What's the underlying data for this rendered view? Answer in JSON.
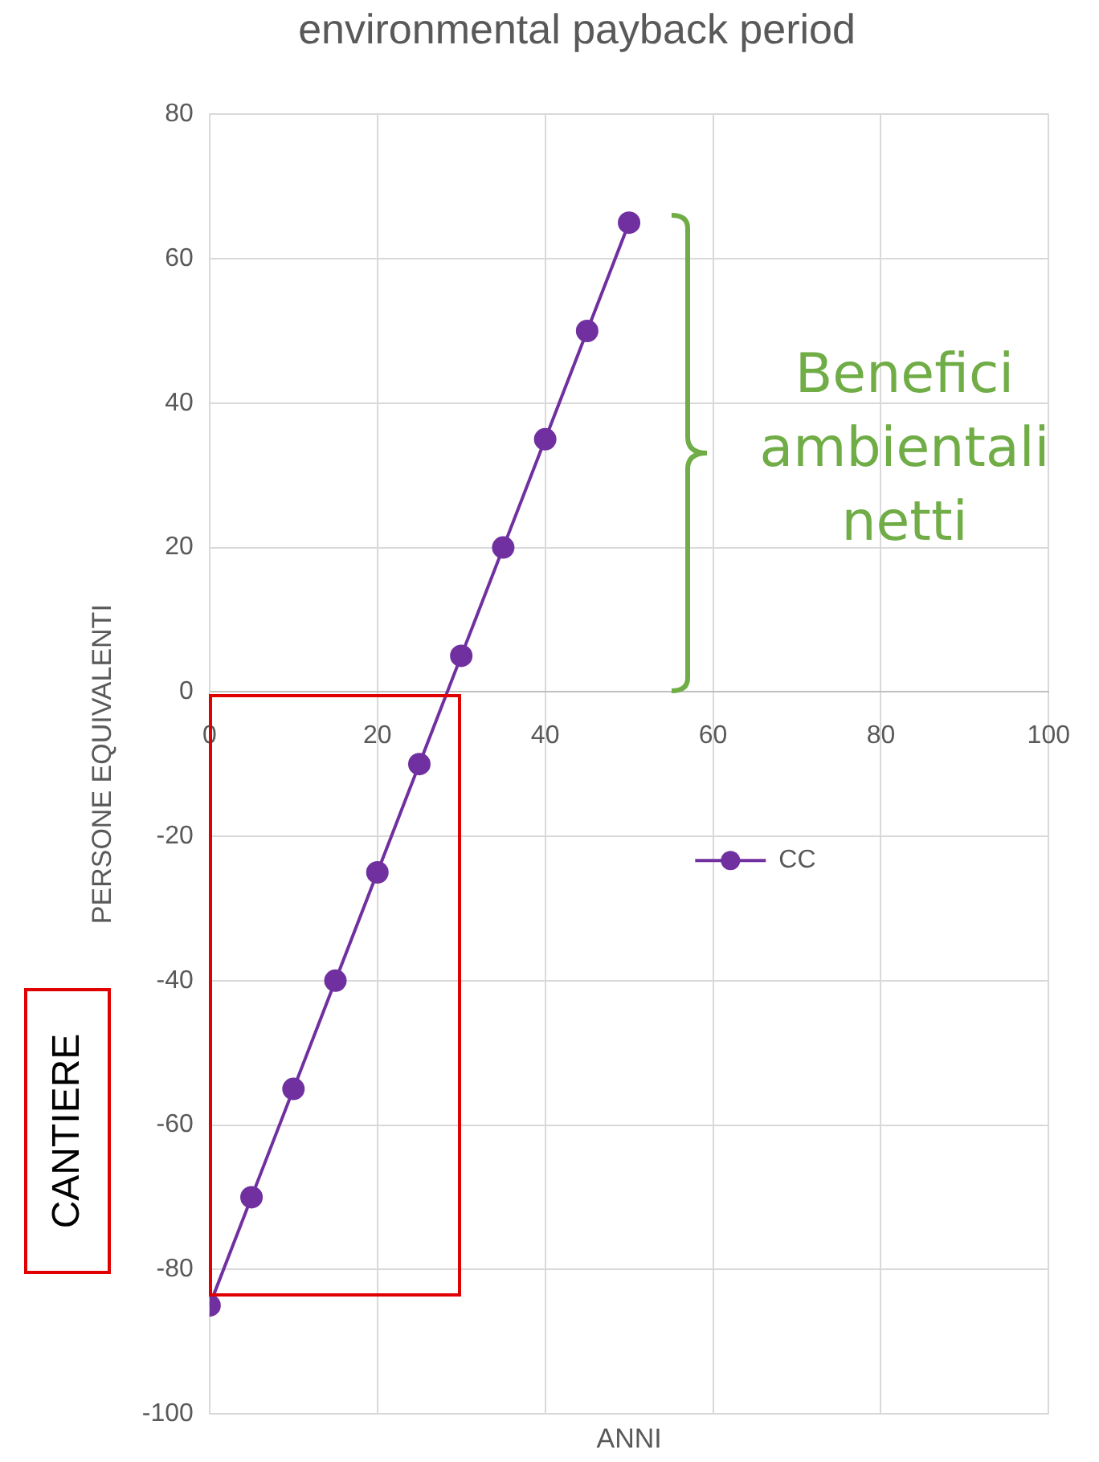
{
  "chart_data": {
    "type": "line",
    "title": "environmental payback period",
    "xlabel": "ANNI",
    "ylabel": "PERSONE EQUIVALENTI",
    "x": [
      0,
      5,
      10,
      15,
      20,
      25,
      30,
      35,
      40,
      45,
      50
    ],
    "series": [
      {
        "name": "CC",
        "color": "#7030a0",
        "values": [
          -85,
          -70,
          -55,
          -40,
          -25,
          -10,
          5,
          20,
          35,
          50,
          65
        ]
      }
    ],
    "xlim": [
      0,
      100
    ],
    "xticks": [
      0,
      20,
      40,
      60,
      80,
      100
    ],
    "ylim": [
      -100,
      80
    ],
    "yticks": [
      -100,
      -80,
      -60,
      -40,
      -20,
      0,
      20,
      40,
      60,
      80
    ],
    "grid": true,
    "legend": "right",
    "marker": "circle",
    "line_style": "solid",
    "annotations": [
      "Benefici ambientali netti",
      "CANTIERE"
    ]
  }
}
